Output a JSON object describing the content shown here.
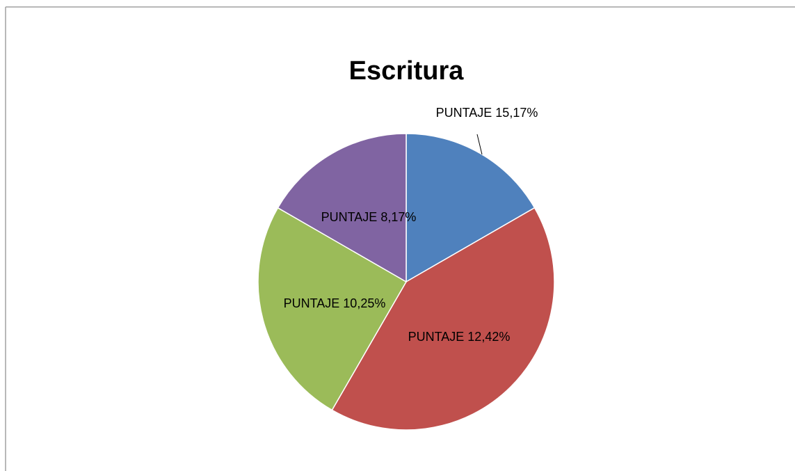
{
  "chart_data": {
    "type": "pie",
    "title": "Escritura",
    "values": [
      16.7,
      41.7,
      25,
      16.7
    ],
    "labels": [
      "PUNTAJE 15,17%",
      "PUNTAJE 12,42%",
      "PUNTAJE 10,25%",
      "PUNTAJE 8,17%"
    ],
    "colors": [
      "#4f81bd",
      "#c0504d",
      "#9bbb59",
      "#8064a2"
    ]
  }
}
